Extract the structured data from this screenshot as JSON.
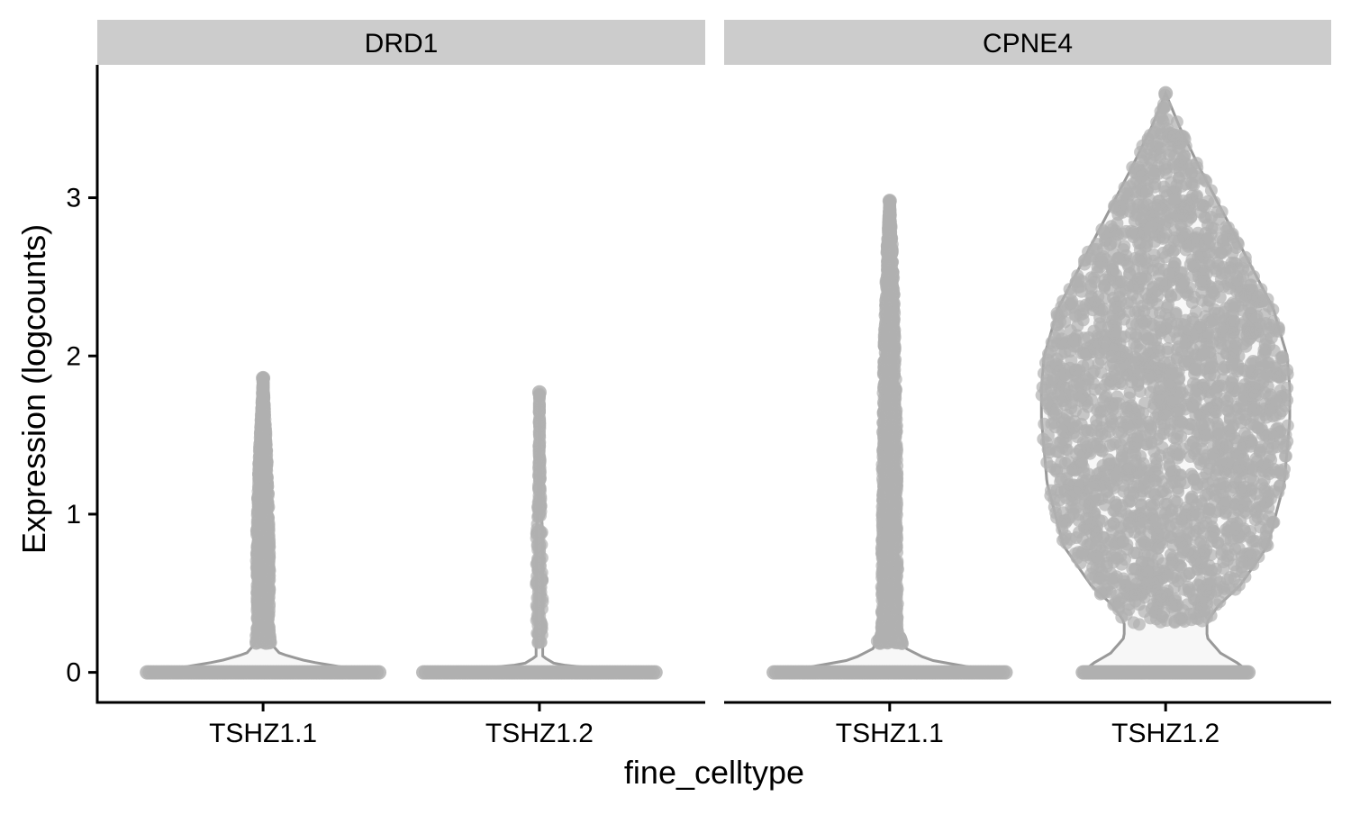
{
  "chart_data": {
    "type": "violin",
    "xlabel": "fine_celltype",
    "ylabel": "Expression (logcounts)",
    "yticks": [
      0,
      1,
      2,
      3
    ],
    "ylim": [
      -0.19,
      3.84
    ],
    "grid": false,
    "legend": "none",
    "colors": {
      "strip": "#cccccc",
      "point": "#b0b0b0",
      "violin_outline": "#999999",
      "violin_fill": "#f7f7f7",
      "axis": "#000000"
    },
    "panels": [
      {
        "strip_label": "DRD1",
        "categories": [
          "TSHZ1.1",
          "TSHZ1.2"
        ],
        "groups": [
          {
            "category": "TSHZ1.1",
            "max": 1.86,
            "zero_halfwidth": 0.42,
            "profile": [
              [
                0,
                0.42
              ],
              [
                0.03,
                0.3
              ],
              [
                0.07,
                0.16
              ],
              [
                0.12,
                0.06
              ],
              [
                0.18,
                0.03
              ],
              [
                0.3,
                0.022
              ],
              [
                0.6,
                0.024
              ],
              [
                0.8,
                0.025
              ],
              [
                1.1,
                0.02
              ],
              [
                1.4,
                0.014
              ],
              [
                1.6,
                0.008
              ],
              [
                1.86,
                0.0
              ]
            ],
            "points_count": 1400
          },
          {
            "category": "TSHZ1.2",
            "max": 1.77,
            "zero_halfwidth": 0.42,
            "profile": [
              [
                0,
                0.42
              ],
              [
                0.02,
                0.24
              ],
              [
                0.05,
                0.06
              ],
              [
                0.1,
                0.012
              ],
              [
                0.3,
                0.012
              ],
              [
                0.6,
                0.012
              ],
              [
                0.9,
                0.011
              ],
              [
                1.0,
                0.007
              ],
              [
                1.2,
                0.004
              ],
              [
                1.77,
                0.0
              ]
            ],
            "points_count": 220
          }
        ]
      },
      {
        "strip_label": "CPNE4",
        "categories": [
          "TSHZ1.1",
          "TSHZ1.2"
        ],
        "groups": [
          {
            "category": "TSHZ1.1",
            "max": 2.98,
            "zero_halfwidth": 0.42,
            "profile": [
              [
                0,
                0.42
              ],
              [
                0.03,
                0.3
              ],
              [
                0.08,
                0.14
              ],
              [
                0.15,
                0.06
              ],
              [
                0.25,
                0.03
              ],
              [
                0.6,
                0.03
              ],
              [
                1.0,
                0.028
              ],
              [
                1.5,
                0.027
              ],
              [
                2.0,
                0.022
              ],
              [
                2.4,
                0.016
              ],
              [
                2.7,
                0.01
              ],
              [
                2.98,
                0.0
              ]
            ],
            "points_count": 1800
          },
          {
            "category": "TSHZ1.2",
            "max": 3.66,
            "zero_halfwidth": 0.3,
            "profile": [
              [
                0,
                0.3
              ],
              [
                0.05,
                0.27
              ],
              [
                0.12,
                0.2
              ],
              [
                0.22,
                0.15
              ],
              [
                0.32,
                0.15
              ],
              [
                0.42,
                0.19
              ],
              [
                0.55,
                0.27
              ],
              [
                0.8,
                0.37
              ],
              [
                1.2,
                0.43
              ],
              [
                1.6,
                0.45
              ],
              [
                1.8,
                0.45
              ],
              [
                2.0,
                0.44
              ],
              [
                2.3,
                0.39
              ],
              [
                2.6,
                0.3
              ],
              [
                2.9,
                0.21
              ],
              [
                3.2,
                0.12
              ],
              [
                3.45,
                0.05
              ],
              [
                3.66,
                0.0
              ]
            ],
            "points_count": 5200
          }
        ]
      }
    ]
  }
}
